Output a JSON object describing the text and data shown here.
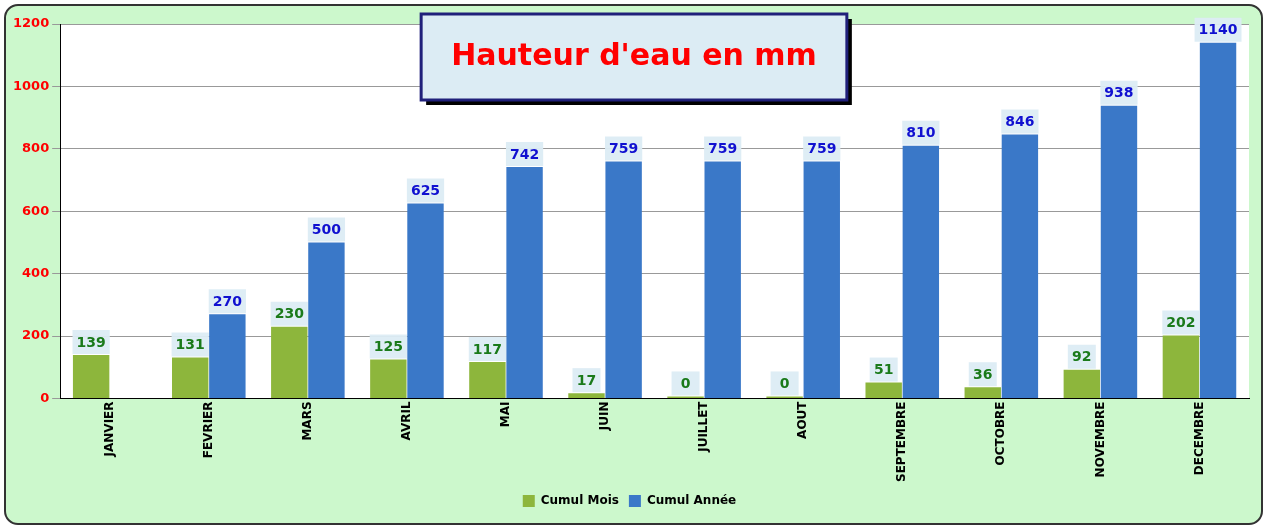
{
  "chart_data": {
    "type": "bar",
    "title": "Hauteur d'eau en mm",
    "categories": [
      "JANVIER",
      "FEVRIER",
      "MARS",
      "AVRIL",
      "MAI",
      "JUIN",
      "JUILLET",
      "AOUT",
      "SEPTEMBRE",
      "OCTOBRE",
      "NOVEMBRE",
      "DECEMBRE"
    ],
    "series": [
      {
        "name": "Cumul Mois",
        "color": "#8db63c",
        "values": [
          139,
          131,
          230,
          125,
          117,
          17,
          0,
          0,
          51,
          36,
          92,
          202
        ]
      },
      {
        "name": "Cumul Année",
        "color": "#3a78c8",
        "values": [
          null,
          270,
          500,
          625,
          742,
          759,
          759,
          759,
          810,
          846,
          938,
          1140
        ]
      }
    ],
    "ylim": [
      0,
      1200
    ],
    "yticks": [
      0,
      200,
      400,
      600,
      800,
      1000,
      1200
    ],
    "grid": "y",
    "legend": "bottom",
    "data_labels": true
  }
}
